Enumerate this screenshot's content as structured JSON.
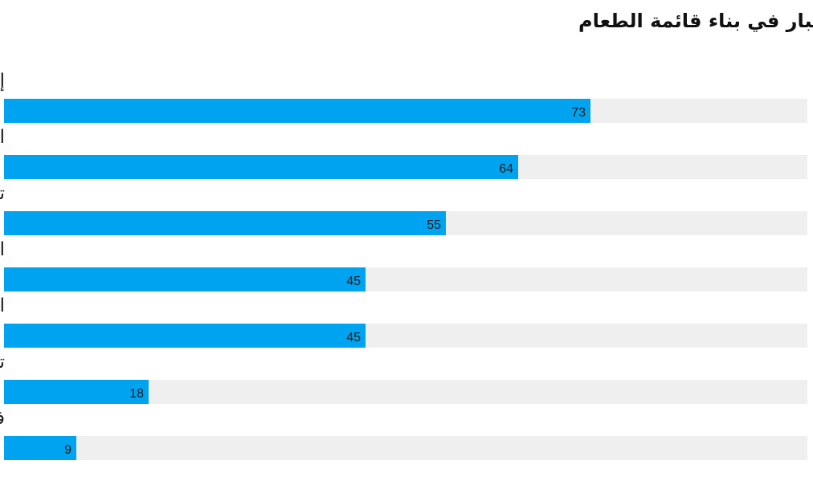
{
  "chart_data": {
    "type": "bar",
    "orientation": "horizontal",
    "title": "أهم العوامل التي تم أخذها بعين الاعتبار في بناء قائمة الطعام",
    "categories": [
      "إدراك القيمة من نظر المستهلك",
      "السعر المنافس",
      "تضحم التكاليف( المواد والعمالة",
      "الأدوار على مستوى العنصر",
      "المرونة على الارباح (الإجمالية أو الصافية)",
      "تعقيد التشغيل",
      "فرصًة لتقديم منتجات جديدة أو مستويات تسعير"
    ],
    "values": [
      73,
      64,
      55,
      45,
      45,
      18,
      9
    ],
    "xlim": [
      0,
      100
    ],
    "grid": false,
    "legend": "none",
    "colors": {
      "bar": "#00a3ef",
      "track": "#efefef"
    }
  }
}
